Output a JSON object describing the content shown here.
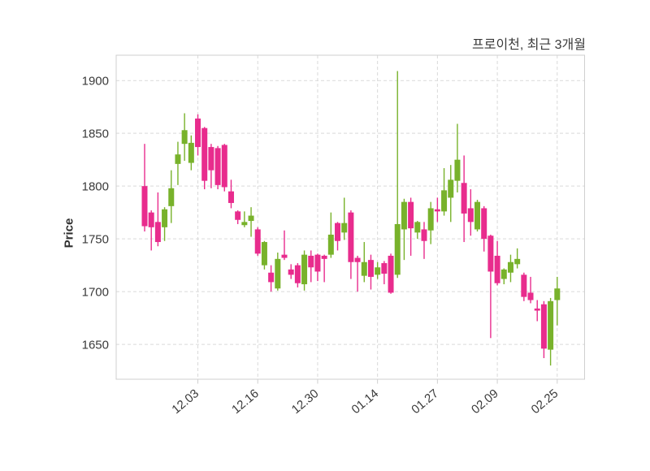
{
  "chart_data": {
    "type": "candlestick",
    "title": "프로이천, 최근 3개월",
    "ylabel": "Price",
    "y_ticks": [
      1650,
      1700,
      1750,
      1800,
      1850,
      1900
    ],
    "ylim": [
      1617,
      1924
    ],
    "x_tick_labels": [
      "12.03",
      "12.16",
      "12.30",
      "01.14",
      "01.27",
      "02.09",
      "02.25"
    ],
    "x_tick_candle_indices": [
      8,
      17,
      26,
      35,
      44,
      53,
      62
    ],
    "grid": true,
    "legend": "none",
    "up_color": "#78B22B",
    "down_color": "#E82C8D",
    "grid_color": "#d9d9d9",
    "border_color": "#cfcfcf",
    "tick_label_color": "#3a3a3a",
    "background_color": "#ffffff",
    "candles_ohlc": [
      [
        1800,
        1840,
        1757,
        1762
      ],
      [
        1775,
        1777,
        1739,
        1761
      ],
      [
        1766,
        1794,
        1743,
        1747
      ],
      [
        1761,
        1780,
        1748,
        1778
      ],
      [
        1781,
        1815,
        1765,
        1798
      ],
      [
        1821,
        1842,
        1801,
        1830
      ],
      [
        1840,
        1869,
        1824,
        1853
      ],
      [
        1822,
        1848,
        1815,
        1841
      ],
      [
        1864,
        1868,
        1829,
        1837
      ],
      [
        1855,
        1856,
        1797,
        1805
      ],
      [
        1837,
        1840,
        1798,
        1815
      ],
      [
        1836,
        1838,
        1797,
        1801
      ],
      [
        1839,
        1840,
        1795,
        1799
      ],
      [
        1795,
        1806,
        1779,
        1784
      ],
      [
        1776,
        1777,
        1764,
        1768
      ],
      [
        1763,
        1776,
        1761,
        1766
      ],
      [
        1767,
        1780,
        1752,
        1772
      ],
      [
        1759,
        1761,
        1734,
        1736
      ],
      [
        1725,
        1748,
        1721,
        1747
      ],
      [
        1718,
        1725,
        1700,
        1709
      ],
      [
        1703,
        1737,
        1701,
        1731
      ],
      [
        1735,
        1758,
        1730,
        1732
      ],
      [
        1721,
        1726,
        1712,
        1716
      ],
      [
        1725,
        1727,
        1704,
        1708
      ],
      [
        1707,
        1739,
        1701,
        1735
      ],
      [
        1734,
        1739,
        1709,
        1723
      ],
      [
        1735,
        1736,
        1710,
        1719
      ],
      [
        1734,
        1735,
        1709,
        1731
      ],
      [
        1735,
        1775,
        1732,
        1754
      ],
      [
        1765,
        1766,
        1739,
        1748
      ],
      [
        1756,
        1789,
        1749,
        1765
      ],
      [
        1775,
        1777,
        1712,
        1728
      ],
      [
        1732,
        1734,
        1700,
        1728
      ],
      [
        1715,
        1747,
        1709,
        1728
      ],
      [
        1730,
        1735,
        1702,
        1714
      ],
      [
        1716,
        1728,
        1712,
        1723
      ],
      [
        1727,
        1729,
        1707,
        1717
      ],
      [
        1734,
        1736,
        1698,
        1699
      ],
      [
        1716,
        1909,
        1713,
        1764
      ],
      [
        1759,
        1788,
        1730,
        1785
      ],
      [
        1785,
        1789,
        1734,
        1760
      ],
      [
        1756,
        1767,
        1750,
        1766
      ],
      [
        1759,
        1766,
        1731,
        1748
      ],
      [
        1758,
        1785,
        1745,
        1779
      ],
      [
        1778,
        1789,
        1766,
        1776
      ],
      [
        1776,
        1817,
        1772,
        1796
      ],
      [
        1789,
        1820,
        1766,
        1806
      ],
      [
        1805,
        1859,
        1794,
        1825
      ],
      [
        1803,
        1829,
        1747,
        1774
      ],
      [
        1779,
        1797,
        1753,
        1766
      ],
      [
        1759,
        1787,
        1757,
        1785
      ],
      [
        1779,
        1781,
        1738,
        1750
      ],
      [
        1753,
        1754,
        1656,
        1719
      ],
      [
        1734,
        1748,
        1706,
        1708
      ],
      [
        1712,
        1722,
        1707,
        1721
      ],
      [
        1718,
        1735,
        1709,
        1728
      ],
      [
        1726,
        1741,
        1722,
        1731
      ],
      [
        1716,
        1718,
        1691,
        1695
      ],
      [
        1699,
        1714,
        1689,
        1692
      ],
      [
        1684,
        1692,
        1672,
        1682
      ],
      [
        1688,
        1691,
        1637,
        1646
      ],
      [
        1645,
        1694,
        1630,
        1691
      ],
      [
        1692,
        1714,
        1668,
        1703
      ]
    ]
  }
}
